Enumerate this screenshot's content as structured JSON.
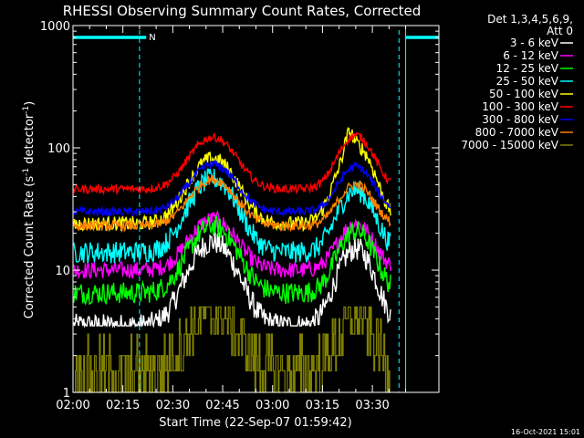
{
  "chart_data": {
    "type": "line",
    "title": "RHESSI Observing Summary Count Rates, Corrected",
    "xlabel": "Start Time (22-Sep-07 01:59:42)",
    "ylabel_main": "Corrected Count Rate (s",
    "ylabel_sup1": "-1",
    "ylabel_mid": " detector",
    "ylabel_sup2": "-1",
    "ylabel_end": ")",
    "yscale": "log",
    "ylim": [
      1,
      1000
    ],
    "xlim_min": [
      0,
      110
    ],
    "x_ticks": [
      {
        "v": 0,
        "label": "02:00"
      },
      {
        "v": 15,
        "label": "02:15"
      },
      {
        "v": 30,
        "label": "02:30"
      },
      {
        "v": 45,
        "label": "02:45"
      },
      {
        "v": 60,
        "label": "03:00"
      },
      {
        "v": 75,
        "label": "03:15"
      },
      {
        "v": 90,
        "label": "03:30"
      }
    ],
    "y_ticks": [
      {
        "v": 1,
        "label": "1"
      },
      {
        "v": 10,
        "label": "10"
      },
      {
        "v": 100,
        "label": "100"
      },
      {
        "v": 1000,
        "label": "1000"
      }
    ],
    "legend_header": [
      "Det 1,3,4,5,6,9,",
      "Att 0"
    ],
    "legend_position": "right",
    "annotations": [
      {
        "text": "N",
        "x": 22
      }
    ],
    "night_intervals": [
      [
        0,
        22
      ],
      [
        100,
        118
      ]
    ],
    "saa_lines": [
      20,
      98,
      118
    ],
    "series": [
      {
        "name": "3 - 6 keV",
        "color": "#ffffff",
        "base": 3.5,
        "p1": 17,
        "p2": 15,
        "noise": 0.1,
        "floor": 3.5
      },
      {
        "name": "6 - 12 keV",
        "color": "#ff00ff",
        "base": 10,
        "p1": 26,
        "p2": 24,
        "noise": 0.07
      },
      {
        "name": "12 - 25 keV",
        "color": "#00ff00",
        "base": 6.5,
        "p1": 23,
        "p2": 21,
        "noise": 0.09
      },
      {
        "name": "25 - 50 keV",
        "color": "#00ffff",
        "base": 14,
        "p1": 56,
        "p2": 45,
        "noise": 0.09
      },
      {
        "name": "50 - 100 keV",
        "color": "#ffff00",
        "base": 24,
        "p1": 82,
        "p2": 105,
        "noise": 0.06
      },
      {
        "name": "100 - 300 keV",
        "color": "#ff0000",
        "base": 46,
        "p1": 122,
        "p2": 126,
        "noise": 0.035
      },
      {
        "name": "300 - 800 keV",
        "color": "#0000ff",
        "base": 30,
        "p1": 73,
        "p2": 70,
        "noise": 0.035
      },
      {
        "name": "800 - 7000 keV",
        "color": "#ff8000",
        "base": 23,
        "p1": 55,
        "p2": 50,
        "noise": 0.04
      },
      {
        "name": "7000 - 15000 keV",
        "color": "#808000",
        "base": 1.5,
        "p1": 4.5,
        "p2": 4,
        "noise": 0.25,
        "step": true
      }
    ]
  },
  "footer": {
    "timestamp": "16-Oct-2021 15:01"
  }
}
